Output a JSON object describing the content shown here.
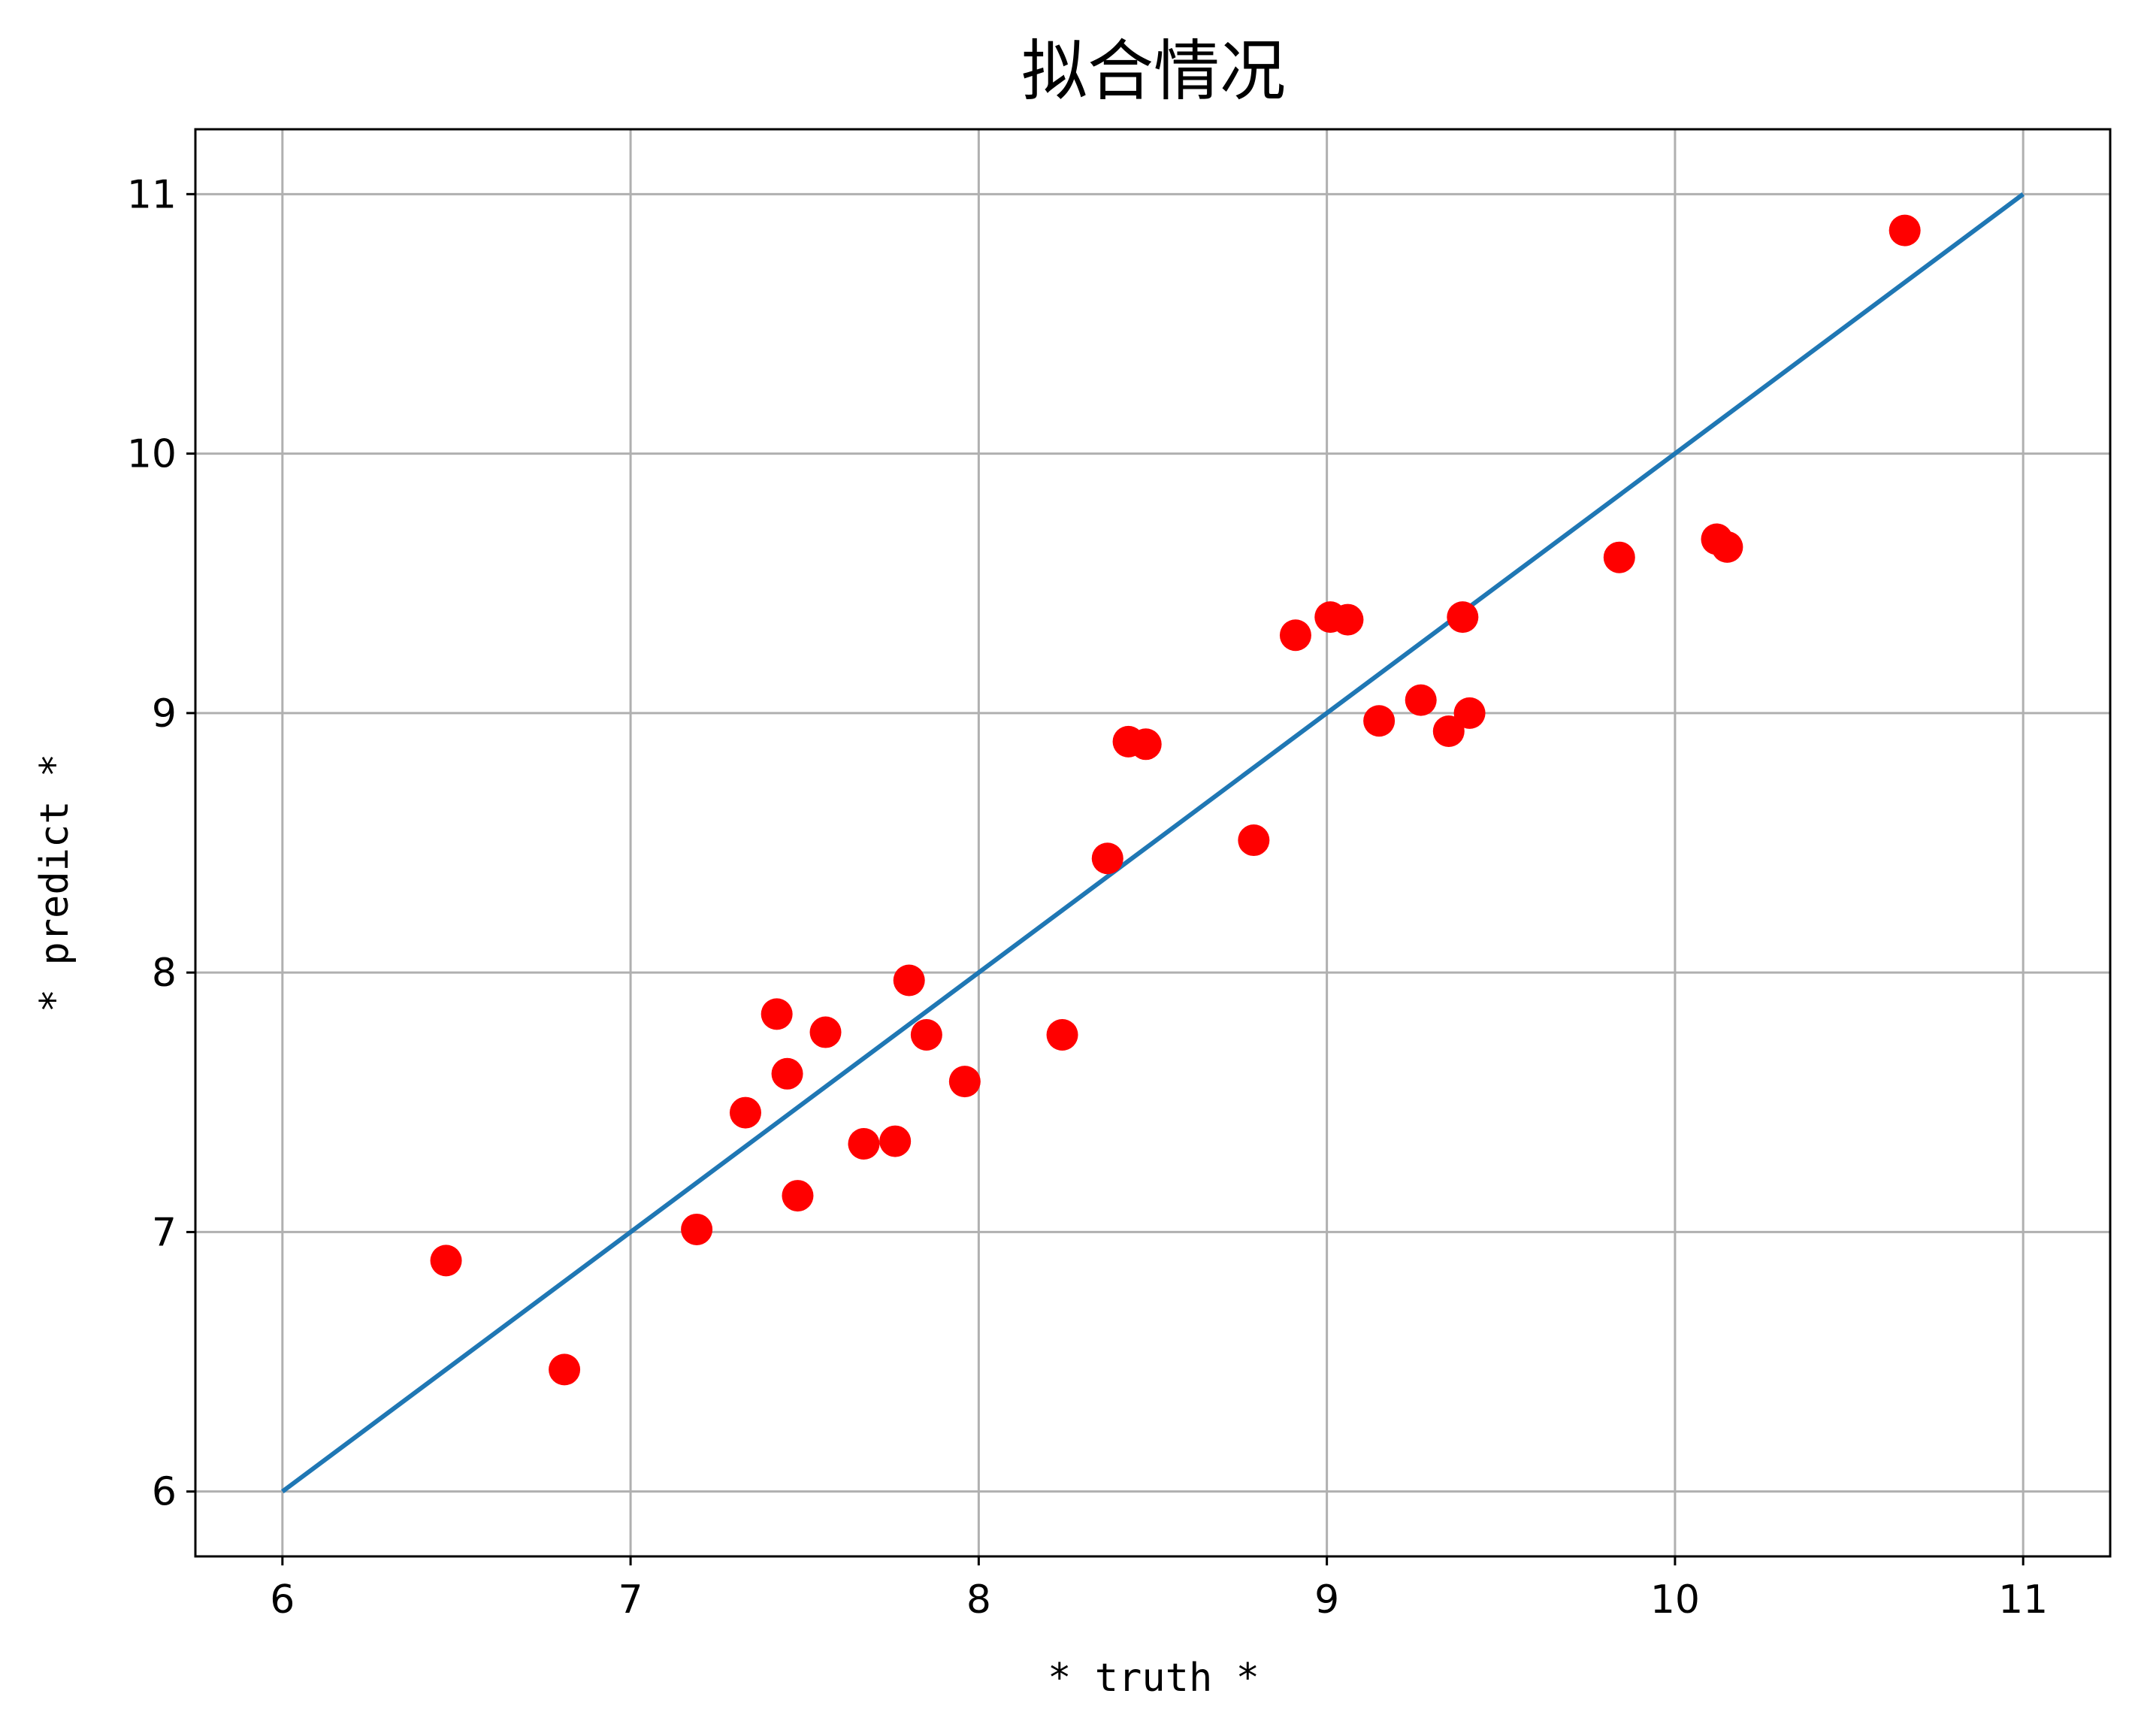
{
  "chart_data": {
    "type": "scatter",
    "title": "拟合情况",
    "xlabel": "* truth *",
    "ylabel": "* predict *",
    "xlim": [
      5.75,
      11.25
    ],
    "ylim": [
      5.75,
      11.25
    ],
    "xticks": [
      6,
      7,
      8,
      9,
      10,
      11
    ],
    "yticks": [
      6,
      7,
      8,
      9,
      10,
      11
    ],
    "xtick_labels": [
      "6",
      "7",
      "8",
      "9",
      "10",
      "11"
    ],
    "ytick_labels": [
      "6",
      "7",
      "8",
      "9",
      "10",
      "11"
    ],
    "grid": true,
    "colors": {
      "points": "#ff0000",
      "line": "#1f77b4",
      "grid": "#b0b0b0"
    },
    "line": {
      "x": [
        6,
        11
      ],
      "y": [
        6,
        11
      ]
    },
    "points": {
      "x": [
        6.47,
        6.81,
        7.19,
        7.33,
        7.42,
        7.45,
        7.48,
        7.56,
        7.67,
        7.76,
        7.8,
        7.85,
        7.96,
        8.24,
        8.37,
        8.43,
        8.48,
        8.79,
        8.91,
        9.01,
        9.06,
        9.15,
        9.27,
        9.35,
        9.39,
        9.41,
        9.84,
        10.12,
        10.15,
        10.66
      ],
      "y": [
        6.89,
        6.47,
        7.01,
        7.46,
        7.84,
        7.61,
        7.14,
        7.77,
        7.34,
        7.35,
        7.97,
        7.76,
        7.58,
        7.76,
        8.44,
        8.89,
        8.88,
        8.51,
        9.3,
        9.37,
        9.36,
        8.97,
        9.05,
        8.93,
        9.37,
        9.0,
        9.6,
        9.67,
        9.64,
        10.86
      ]
    }
  }
}
